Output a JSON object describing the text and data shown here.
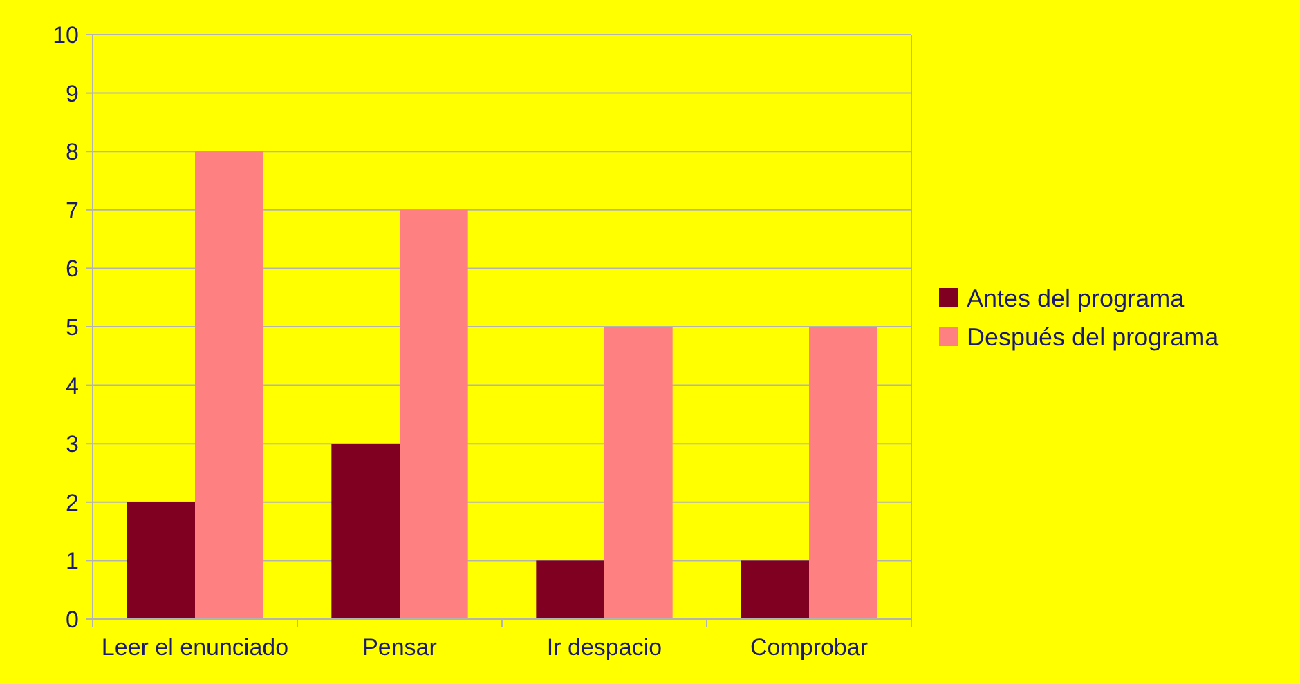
{
  "chart_data": {
    "type": "bar",
    "categories": [
      "Leer el enunciado",
      "Pensar",
      "Ir despacio",
      "Comprobar"
    ],
    "series": [
      {
        "name": "Antes del programa",
        "color": "#7f0020",
        "values": [
          2,
          3,
          1,
          1
        ]
      },
      {
        "name": "Después del programa",
        "color": "#ff8080",
        "values": [
          8,
          7,
          5,
          5
        ]
      }
    ],
    "ylim": [
      0,
      10
    ],
    "yticks": [
      0,
      1,
      2,
      3,
      4,
      5,
      6,
      7,
      8,
      9,
      10
    ],
    "grid": "y",
    "legend": "right"
  }
}
